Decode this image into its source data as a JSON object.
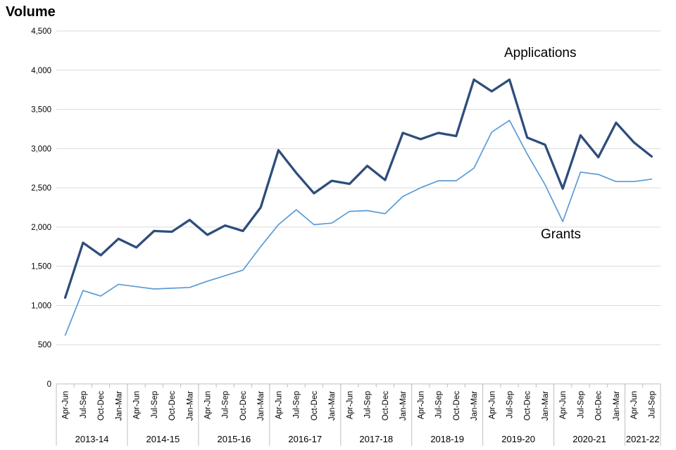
{
  "chart_data": {
    "type": "line",
    "title": "Volume",
    "ylabel": "",
    "ylim": [
      0,
      4500
    ],
    "ytick_step": 500,
    "ytick_labels": [
      "0",
      "500",
      "1,000",
      "1,500",
      "2,000",
      "2,500",
      "3,000",
      "3,500",
      "4,000",
      "4,500"
    ],
    "grid": true,
    "legend_position": "inline-annotations",
    "year_groups": [
      {
        "year": "2013-14",
        "quarters": [
          "Apr-Jun",
          "Jul-Sep",
          "Oct-Dec",
          "Jan-Mar"
        ]
      },
      {
        "year": "2014-15",
        "quarters": [
          "Apr-Jun",
          "Jul-Sep",
          "Oct-Dec",
          "Jan-Mar"
        ]
      },
      {
        "year": "2015-16",
        "quarters": [
          "Apr-Jun",
          "Jul-Sep",
          "Oct-Dec",
          "Jan-Mar"
        ]
      },
      {
        "year": "2016-17",
        "quarters": [
          "Apr-Jun",
          "Jul-Sep",
          "Oct-Dec",
          "Jan-Mar"
        ]
      },
      {
        "year": "2017-18",
        "quarters": [
          "Apr-Jun",
          "Jul-Sep",
          "Oct-Dec",
          "Jan-Mar"
        ]
      },
      {
        "year": "2018-19",
        "quarters": [
          "Apr-Jun",
          "Jul-Sep",
          "Oct-Dec",
          "Jan-Mar"
        ]
      },
      {
        "year": "2019-20",
        "quarters": [
          "Apr-Jun",
          "Jul-Sep",
          "Oct-Dec",
          "Jan-Mar"
        ]
      },
      {
        "year": "2020-21",
        "quarters": [
          "Apr-Jun",
          "Jul-Sep",
          "Oct-Dec",
          "Jan-Mar"
        ]
      },
      {
        "year": "2021-22",
        "quarters": [
          "Apr-Jun",
          "Jul-Sep"
        ]
      }
    ],
    "series": [
      {
        "name": "Applications",
        "color": "#2E4D7B",
        "stroke_width": 3.3,
        "values": [
          1100,
          1800,
          1640,
          1850,
          1740,
          1950,
          1940,
          2090,
          1900,
          2020,
          1950,
          2250,
          2980,
          2690,
          2430,
          2590,
          2550,
          2780,
          2600,
          3200,
          3120,
          3200,
          3160,
          3880,
          3730,
          3880,
          3140,
          3050,
          2490,
          3170,
          2890,
          3330,
          3080,
          2900
        ]
      },
      {
        "name": "Grants",
        "color": "#5B9BD5",
        "stroke_width": 1.7,
        "values": [
          620,
          1190,
          1120,
          1270,
          1240,
          1210,
          1220,
          1230,
          1310,
          1380,
          1450,
          1750,
          2030,
          2220,
          2030,
          2050,
          2200,
          2210,
          2170,
          2390,
          2500,
          2590,
          2590,
          2750,
          3210,
          3360,
          2930,
          2540,
          2070,
          2700,
          2670,
          2580,
          2580,
          2610
        ]
      }
    ],
    "colors": {
      "gridline": "#D9D9D9",
      "axis": "#BFBFBF",
      "label_text": "#000000"
    }
  }
}
